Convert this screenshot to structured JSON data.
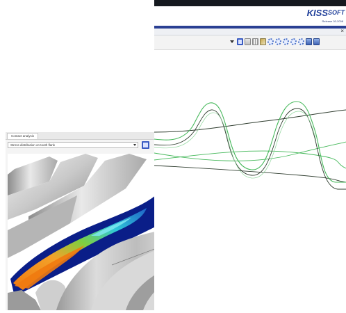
{
  "kisssoft": {
    "logo_main": "KISS",
    "logo_soft": "SOFT",
    "version_line": "Release 03-2008",
    "close_glyph": "×",
    "toolbar_icons": [
      "dropdown-arrow-icon",
      "save-icon",
      "chart-icon",
      "table-icon",
      "image-icon",
      "gear-icon",
      "gear-icon",
      "gear-icon",
      "gear-icon",
      "gear-icon",
      "tool-icon",
      "tool-icon"
    ]
  },
  "contact_analysis": {
    "tab_label": "Contact analysis",
    "select_value": "Stress distribution on tooth flank",
    "save_icon": "save-icon"
  },
  "colors": {
    "brand_blue": "#21409a",
    "curve_green": "#45b85a",
    "curve_dark": "#2f3d2f",
    "stress_hot": "#f08a12",
    "stress_cool": "#0a1e88"
  }
}
